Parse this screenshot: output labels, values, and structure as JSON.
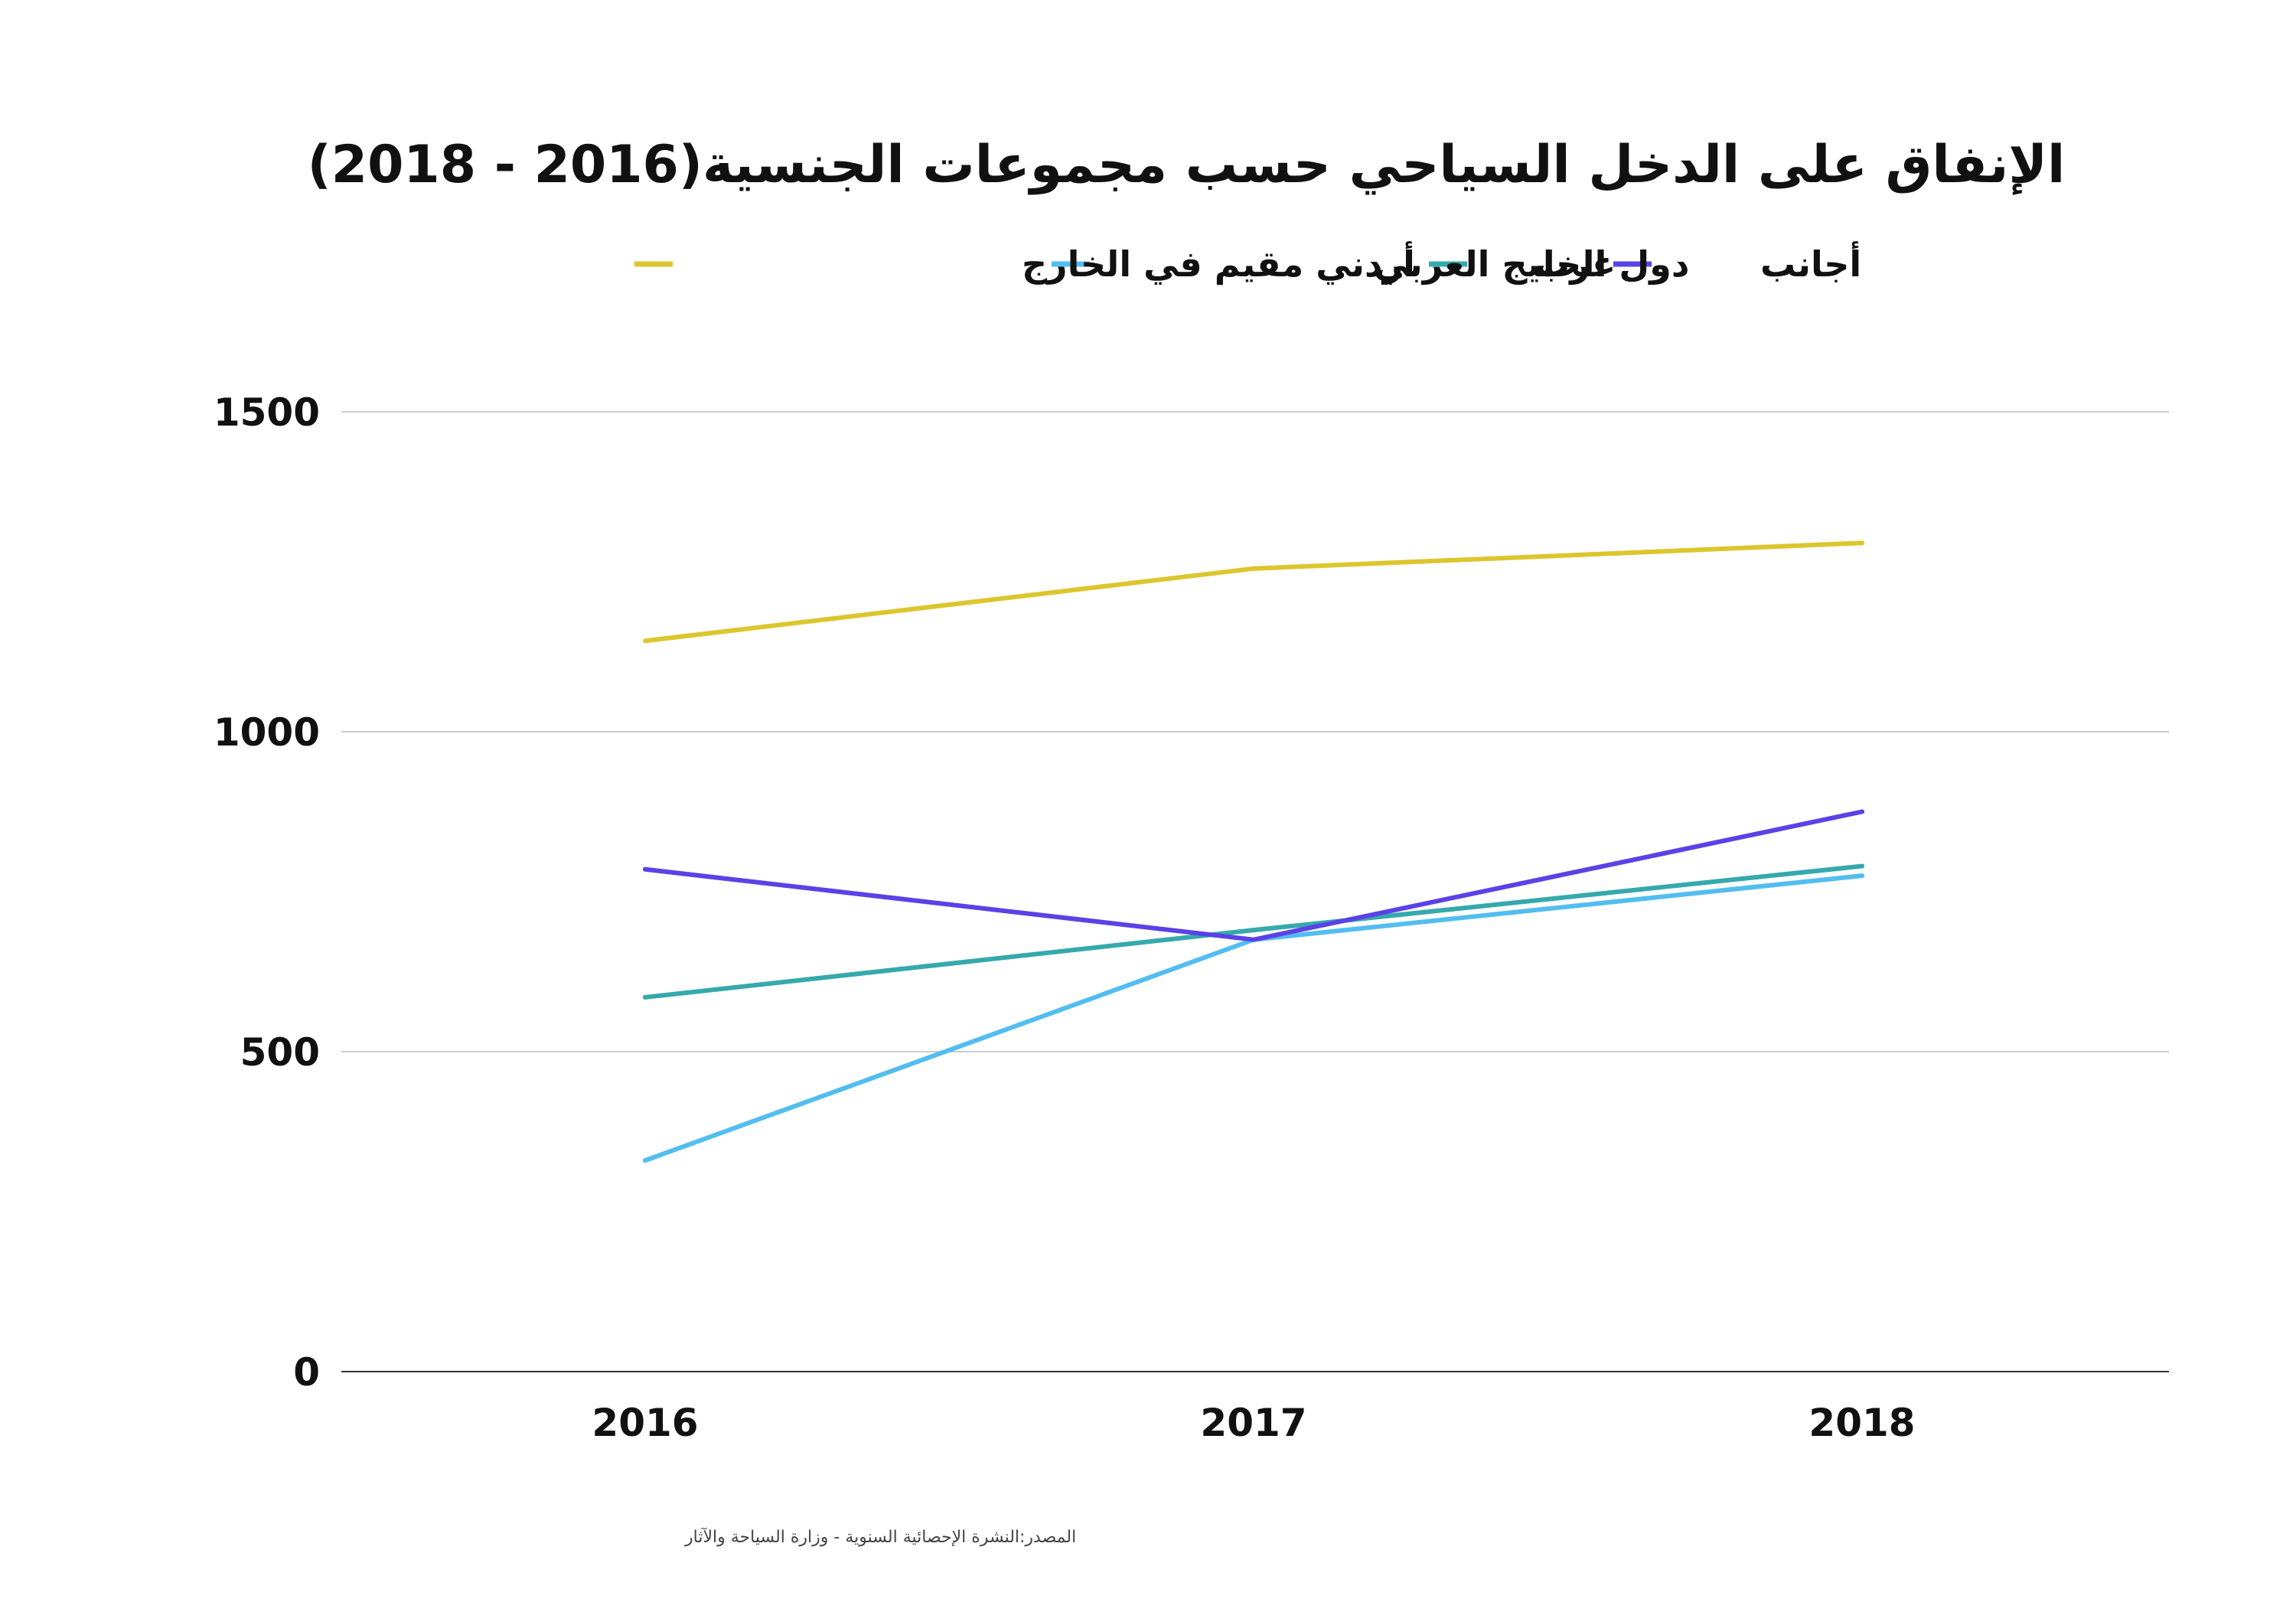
{
  "chart_data": {
    "type": "line",
    "title": "الإنفاق على  الدخل السياحي حسب مجموعات الجنسية(2016 - 2018)",
    "xlabel": "",
    "ylabel": "",
    "categories": [
      "2016",
      "2017",
      "2018"
    ],
    "ylim": [
      0,
      1500
    ],
    "yticks": [
      "0",
      "500",
      "1000",
      "1500"
    ],
    "grid": true,
    "legend_position": "top",
    "series": [
      {
        "name": "أردني مقيم في الخارج",
        "color": "#dcc62e",
        "values": [
          1142,
          1255,
          1295
        ]
      },
      {
        "name": "دول الخليج العربي",
        "color": "#52bdf0",
        "values": [
          330,
          675,
          775
        ]
      },
      {
        "name": "عرب",
        "color": "#35a9ac",
        "values": [
          585,
          690,
          790
        ]
      },
      {
        "name": "أجانب",
        "color": "#5a42e6",
        "values": [
          785,
          675,
          875
        ]
      }
    ]
  },
  "source_note": "المصدر:النشرة الإحصائية السنوية - وزارة السياحة والآثار"
}
